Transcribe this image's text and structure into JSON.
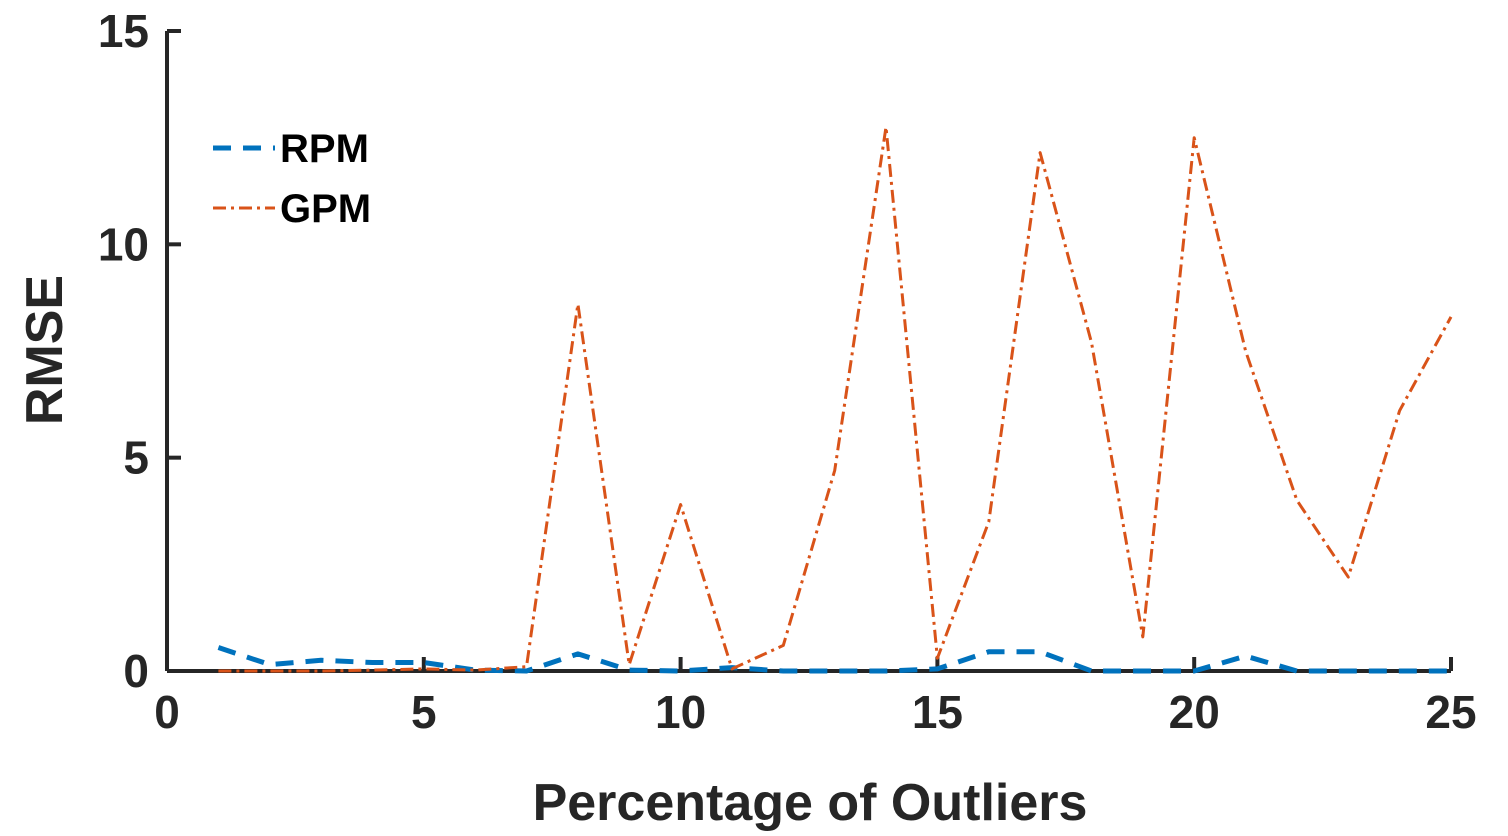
{
  "chart_data": {
    "type": "line",
    "title": "",
    "xlabel": "Percentage of Outliers",
    "ylabel": "RMSE",
    "xlim": [
      0,
      25
    ],
    "ylim": [
      0,
      15
    ],
    "x_ticks": [
      "0",
      "5",
      "10",
      "15",
      "20",
      "25"
    ],
    "y_ticks": [
      "0",
      "5",
      "10",
      "15"
    ],
    "grid": false,
    "legend_position": "top-left",
    "x": [
      1,
      2,
      3,
      4,
      5,
      6,
      7,
      8,
      9,
      10,
      11,
      12,
      13,
      14,
      15,
      16,
      17,
      18,
      19,
      20,
      21,
      22,
      23,
      24,
      25
    ],
    "series": [
      {
        "name": "RPM",
        "color": "#0072BD",
        "line_style": "dashed",
        "values": [
          0.55,
          0.15,
          0.25,
          0.2,
          0.2,
          0.02,
          0.0,
          0.4,
          0.02,
          0.0,
          0.08,
          0.0,
          0.0,
          0.0,
          0.05,
          0.45,
          0.45,
          0.0,
          0.0,
          0.0,
          0.35,
          0.0,
          0.0,
          0.0,
          0.0
        ]
      },
      {
        "name": "GPM",
        "color": "#D95319",
        "line_style": "dash-dot",
        "values": [
          0.0,
          0.0,
          0.0,
          0.02,
          0.05,
          0.02,
          0.1,
          8.6,
          0.15,
          3.9,
          0.05,
          0.6,
          4.7,
          12.75,
          0.3,
          3.5,
          12.15,
          7.7,
          0.8,
          12.5,
          7.5,
          4.0,
          2.2,
          6.1,
          8.3
        ]
      }
    ]
  }
}
